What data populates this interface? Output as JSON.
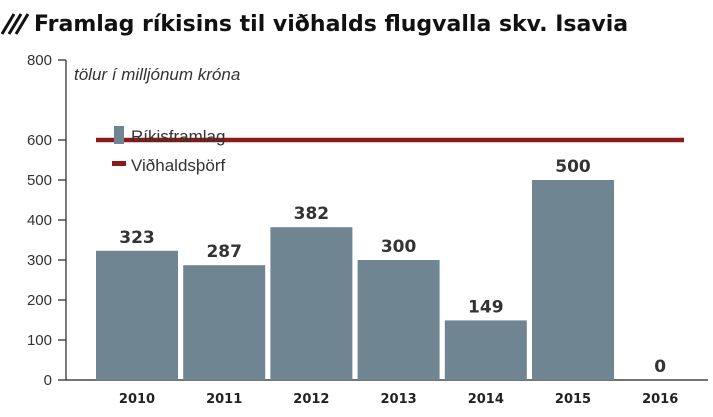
{
  "chart_data": {
    "type": "bar",
    "title": "Framlag ríkisins til viðhalds flugvalla skv. Isavia",
    "subtitle": "tölur í milljónum króna",
    "categories": [
      "2010",
      "2011",
      "2012",
      "2013",
      "2014",
      "2015",
      "2016"
    ],
    "series": [
      {
        "name": "Ríkisframlag",
        "values": [
          323,
          287,
          382,
          300,
          149,
          500,
          0
        ]
      }
    ],
    "reference_line": {
      "name": "Viðhaldsþörf",
      "value": 600
    },
    "y_ticks": [
      0,
      100,
      200,
      300,
      400,
      500,
      600,
      800
    ],
    "ylim": [
      0,
      800
    ],
    "grid": false,
    "legend_position": "top-left",
    "xlabel": "",
    "ylabel": "",
    "colors": {
      "bar": "#6f8591",
      "line": "#8b1a1a",
      "hatch": "#111111"
    }
  }
}
